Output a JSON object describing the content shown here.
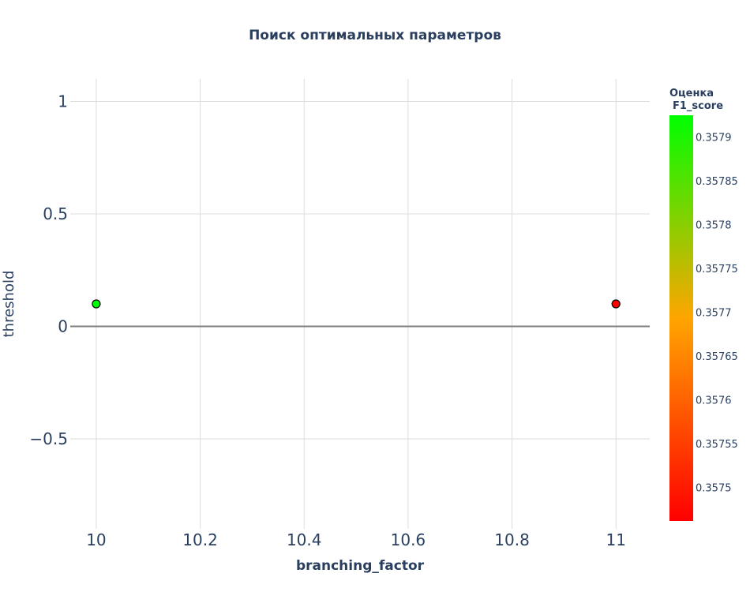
{
  "chart_data": {
    "type": "scatter",
    "title": "Поиск оптимальных параметров",
    "xlabel": "branching_factor",
    "ylabel": "threshold",
    "xlim": [
      9.95,
      11.065
    ],
    "ylim": [
      -0.9,
      1.1
    ],
    "xticks": [
      10,
      10.2,
      10.4,
      10.6,
      10.8,
      11
    ],
    "xtick_labels": [
      "10",
      "10.2",
      "10.4",
      "10.6",
      "10.8",
      "11"
    ],
    "yticks": [
      1,
      0.5,
      0,
      -0.5
    ],
    "ytick_labels": [
      "1",
      "0.5",
      "0",
      "−0.5"
    ],
    "grid": true,
    "points": [
      {
        "x": 10,
        "y": 0.1,
        "f1_score": 0.357925
      },
      {
        "x": 11,
        "y": 0.1,
        "f1_score": 0.357462
      }
    ],
    "colorbar": {
      "title_line1": "Оценка",
      "title_line2": "F1_score",
      "min": 0.357462,
      "max": 0.357925,
      "ticks": [
        0.3579,
        0.35785,
        0.3578,
        0.35775,
        0.3577,
        0.35765,
        0.3576,
        0.35755,
        0.3575
      ],
      "tick_labels": [
        "0.3579",
        "0.35785",
        "0.3578",
        "0.35775",
        "0.3577",
        "0.35765",
        "0.3576",
        "0.35755",
        "0.3575"
      ],
      "colors": [
        "#ff0000",
        "#ffa500",
        "#00ff00"
      ]
    }
  }
}
